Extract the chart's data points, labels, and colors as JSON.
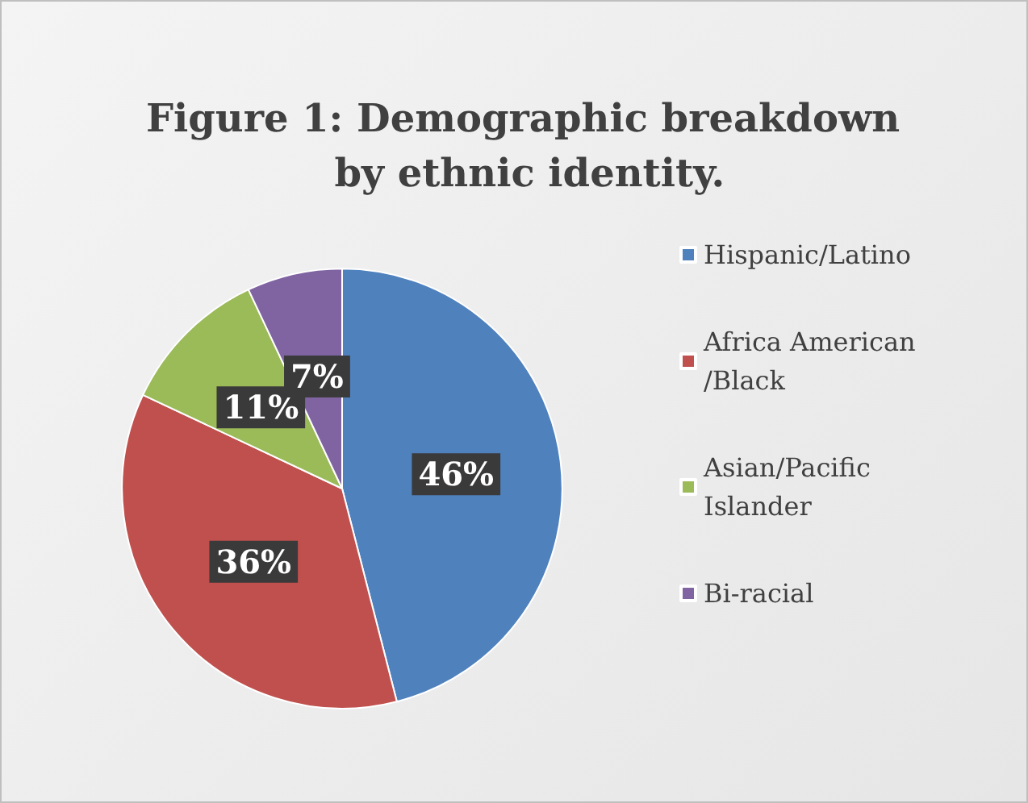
{
  "chart_data": {
    "type": "pie",
    "title": "Figure 1: Demographic breakdown by ethnic identity.",
    "categories": [
      "Hispanic/Latino",
      "Africa American/Black",
      "Asian/Pacific Islander",
      "Bi-racial"
    ],
    "values": [
      46,
      36,
      11,
      7
    ],
    "colors": [
      "#4f81bd",
      "#c0504d",
      "#9bbb59",
      "#8064a2"
    ],
    "value_labels": [
      "46%",
      "36%",
      "11%",
      "7%"
    ],
    "legend": "right"
  }
}
